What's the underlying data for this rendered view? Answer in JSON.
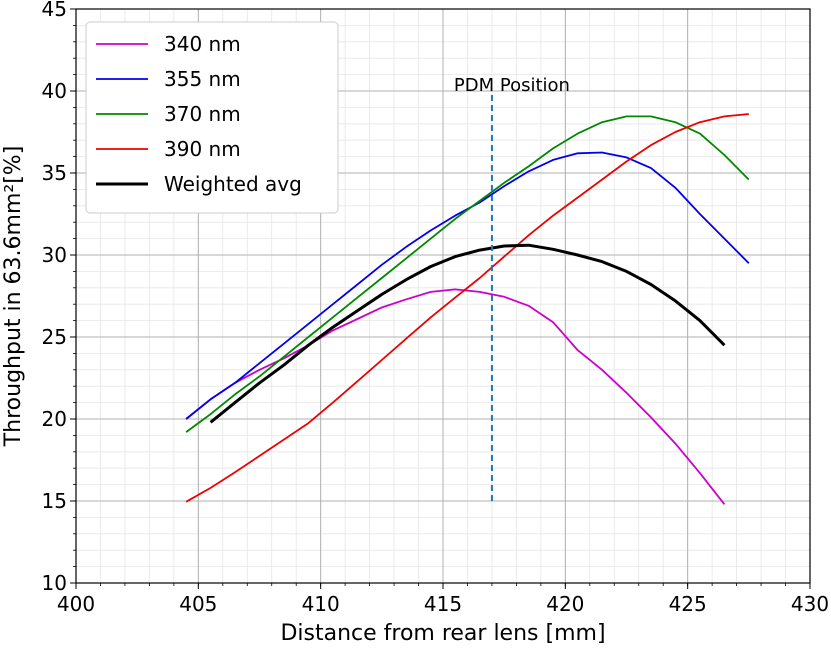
{
  "chart_data": {
    "type": "line",
    "title": "",
    "xlabel": "Distance from rear lens [mm]",
    "ylabel": "Throughput in 63.6mm²[%]",
    "xlim": [
      400,
      430
    ],
    "ylim": [
      10,
      45
    ],
    "grid": true,
    "minor_grid": true,
    "legend_position": "top-left",
    "x_ticks": [
      "400",
      "405",
      "410",
      "415",
      "420",
      "425",
      "430"
    ],
    "y_ticks": [
      "10",
      "15",
      "20",
      "25",
      "30",
      "35",
      "40",
      "45"
    ],
    "series": [
      {
        "name": "340 nm",
        "color": "#cc00cc",
        "x": [
          404.5,
          405.5,
          406.5,
          407.5,
          408.5,
          409.5,
          410.5,
          411.5,
          412.5,
          413.5,
          414.5,
          415.5,
          416.5,
          417.5,
          418.5,
          419.5,
          420.5,
          421.5,
          422.5,
          423.5,
          424.5,
          425.5,
          426.5
        ],
        "y": [
          20.0,
          21.2,
          22.2,
          23.0,
          23.7,
          24.5,
          25.4,
          26.1,
          26.8,
          27.3,
          27.75,
          27.9,
          27.75,
          27.45,
          26.9,
          25.9,
          24.2,
          23.0,
          21.6,
          20.1,
          18.5,
          16.7,
          14.8
        ]
      },
      {
        "name": "355 nm",
        "color": "#0000ee",
        "x": [
          404.5,
          405.5,
          406.5,
          407.5,
          408.5,
          409.5,
          410.5,
          411.5,
          412.5,
          413.5,
          414.5,
          415.5,
          416.5,
          417.5,
          418.5,
          419.5,
          420.5,
          421.5,
          422.5,
          423.5,
          424.5,
          425.5,
          426.5,
          427.5
        ],
        "y": [
          20.0,
          21.2,
          22.2,
          23.4,
          24.6,
          25.8,
          27.0,
          28.2,
          29.4,
          30.5,
          31.5,
          32.4,
          33.2,
          34.2,
          35.1,
          35.8,
          36.2,
          36.25,
          35.95,
          35.3,
          34.1,
          32.5,
          31.0,
          29.5
        ]
      },
      {
        "name": "370 nm",
        "color": "#008800",
        "x": [
          404.5,
          405.5,
          406.5,
          407.5,
          408.5,
          409.5,
          410.5,
          411.5,
          412.5,
          413.5,
          414.5,
          415.5,
          416.5,
          417.5,
          418.5,
          419.5,
          420.5,
          421.5,
          422.5,
          423.5,
          424.5,
          425.5,
          426.5,
          427.5
        ],
        "y": [
          19.2,
          20.3,
          21.5,
          22.6,
          23.8,
          25.0,
          26.2,
          27.4,
          28.6,
          29.8,
          31.0,
          32.2,
          33.3,
          34.4,
          35.4,
          36.5,
          37.4,
          38.1,
          38.45,
          38.45,
          38.1,
          37.4,
          36.1,
          34.6
        ]
      },
      {
        "name": "390 nm",
        "color": "#ee0000",
        "x": [
          404.5,
          405.5,
          406.5,
          407.5,
          408.5,
          409.5,
          410.5,
          411.5,
          412.5,
          413.5,
          414.5,
          415.5,
          416.5,
          417.5,
          418.5,
          419.5,
          420.5,
          421.5,
          422.5,
          423.5,
          424.5,
          425.5,
          426.5,
          427.5
        ],
        "y": [
          14.95,
          15.8,
          16.75,
          17.75,
          18.75,
          19.75,
          21.0,
          22.3,
          23.6,
          24.9,
          26.2,
          27.4,
          28.6,
          29.9,
          31.2,
          32.4,
          33.5,
          34.6,
          35.7,
          36.7,
          37.5,
          38.1,
          38.45,
          38.6
        ]
      },
      {
        "name": "Weighted avg",
        "color": "#000000",
        "x": [
          405.5,
          406.5,
          407.5,
          408.5,
          409.5,
          410.5,
          411.5,
          412.5,
          413.5,
          414.5,
          415.5,
          416.5,
          417.5,
          418.5,
          419.5,
          420.5,
          421.5,
          422.5,
          423.5,
          424.5,
          425.5,
          426.5
        ],
        "y": [
          19.8,
          21.0,
          22.2,
          23.3,
          24.5,
          25.6,
          26.6,
          27.6,
          28.5,
          29.3,
          29.9,
          30.3,
          30.55,
          30.6,
          30.35,
          30.0,
          29.6,
          29.0,
          28.2,
          27.2,
          26.0,
          24.5
        ]
      }
    ],
    "annotations": [
      {
        "text": "PDM Position",
        "x": 417,
        "y_from": 15,
        "y_to": 40,
        "color": "#1f77b4",
        "style": "dashed"
      }
    ]
  }
}
